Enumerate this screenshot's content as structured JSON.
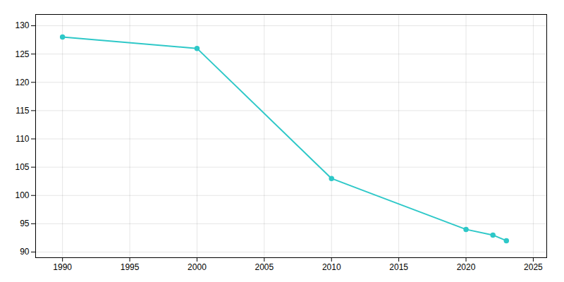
{
  "chart_data": {
    "type": "line",
    "x": [
      1990,
      2000,
      2010,
      2020,
      2022,
      2023
    ],
    "values": [
      128,
      126,
      103,
      94,
      93,
      92
    ],
    "color": "#2ec8c8",
    "marker": "circle",
    "xlim": [
      1988,
      2026
    ],
    "xticks": [
      1990,
      1995,
      2000,
      2005,
      2010,
      2015,
      2020,
      2025
    ],
    "ylim": [
      89,
      132
    ],
    "yticks": [
      90,
      95,
      100,
      105,
      110,
      115,
      120,
      125,
      130
    ],
    "grid": true
  }
}
